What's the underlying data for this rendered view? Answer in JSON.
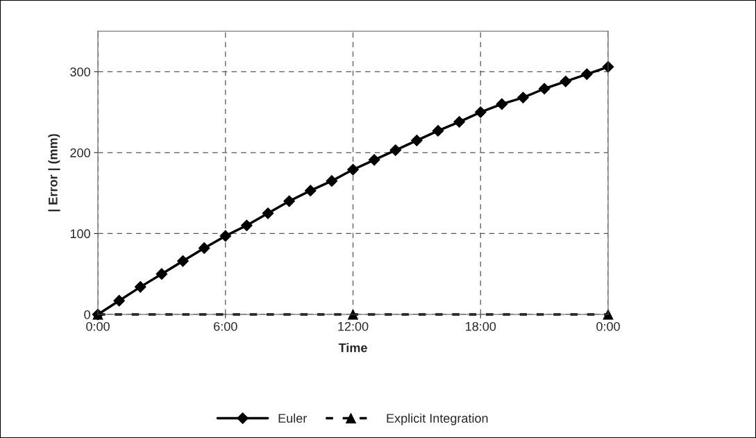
{
  "chart_data": {
    "type": "line",
    "xlabel": "Time",
    "ylabel": "| Error | (mm)",
    "xlim": [
      0,
      24
    ],
    "ylim": [
      0,
      350
    ],
    "xticks": [
      {
        "value": 0,
        "label": "0:00"
      },
      {
        "value": 6,
        "label": "6:00"
      },
      {
        "value": 12,
        "label": "12:00"
      },
      {
        "value": 18,
        "label": "18:00"
      },
      {
        "value": 24,
        "label": "0:00"
      }
    ],
    "yticks": [
      0,
      100,
      200,
      300
    ],
    "grid": true,
    "legend": "bottom",
    "series": [
      {
        "name": "Euler",
        "color": "#000000",
        "marker": "diamond",
        "line_style": "solid",
        "x": [
          0,
          1,
          2,
          3,
          4,
          5,
          6,
          7,
          8,
          9,
          10,
          11,
          12,
          13,
          14,
          15,
          16,
          17,
          18,
          19,
          20,
          21,
          22,
          23,
          24
        ],
        "values": [
          0,
          17,
          34,
          50,
          66,
          82,
          97,
          110,
          125,
          140,
          153,
          165,
          179,
          191,
          203,
          215,
          227,
          238,
          250,
          260,
          268,
          279,
          288,
          297,
          306
        ]
      },
      {
        "name": "Explicit Integration",
        "color": "#000000",
        "marker": "triangle",
        "line_style": "dashed",
        "x": [
          0,
          12,
          24
        ],
        "values": [
          0,
          0,
          0
        ]
      }
    ]
  }
}
